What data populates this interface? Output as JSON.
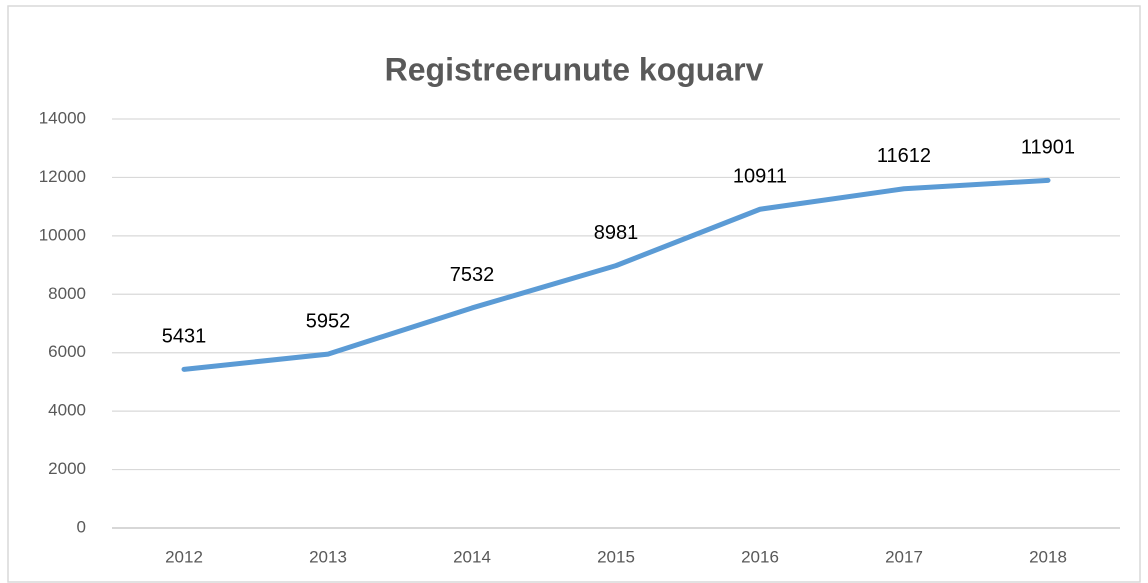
{
  "chart_data": {
    "type": "line",
    "title": "Registreerunute koguarv",
    "categories": [
      "2012",
      "2013",
      "2014",
      "2015",
      "2016",
      "2017",
      "2018"
    ],
    "values": [
      5431,
      5952,
      7532,
      8981,
      10911,
      11612,
      11901
    ],
    "color": "#5b9bd5",
    "ylim": [
      0,
      14000
    ],
    "yticks": [
      0,
      2000,
      4000,
      6000,
      8000,
      10000,
      12000,
      14000
    ],
    "grid": true
  }
}
